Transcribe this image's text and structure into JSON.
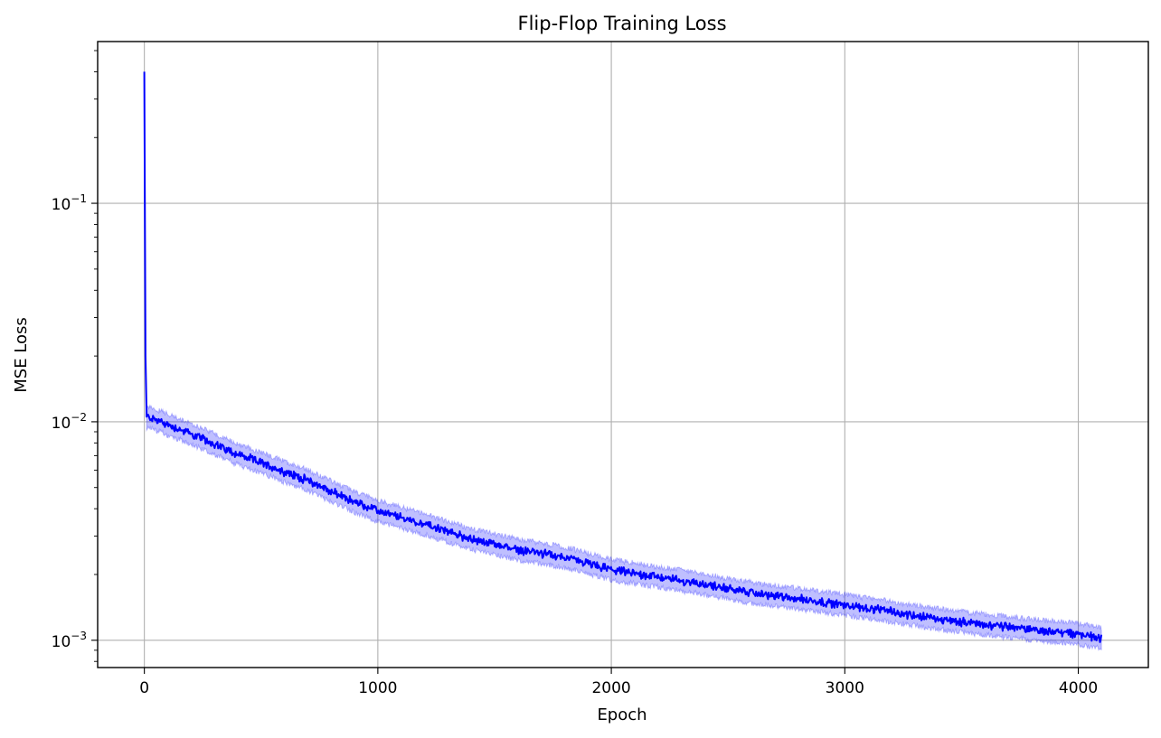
{
  "chart_data": {
    "type": "line",
    "title": "Flip-Flop Training Loss",
    "xlabel": "Epoch",
    "ylabel": "MSE Loss",
    "yscale": "log",
    "grid": true,
    "xlim": [
      -200,
      4300
    ],
    "ylim": [
      0.00075,
      0.55
    ],
    "x_ticks": [
      0,
      1000,
      2000,
      3000,
      4000
    ],
    "x_tick_labels": [
      "0",
      "1000",
      "2000",
      "3000",
      "4000"
    ],
    "y_ticks": [
      0.001,
      0.01,
      0.1
    ],
    "y_tick_labels": [
      {
        "base": "10",
        "exp": "−3"
      },
      {
        "base": "10",
        "exp": "−2"
      },
      {
        "base": "10",
        "exp": "−1"
      }
    ],
    "series": [
      {
        "color": "#0000ff",
        "x": [
          0,
          5,
          10,
          20,
          50,
          100,
          200,
          300,
          400,
          500,
          600,
          700,
          800,
          900,
          1000,
          1200,
          1400,
          1600,
          1800,
          2000,
          2200,
          2400,
          2600,
          2800,
          3000,
          3200,
          3400,
          3600,
          3800,
          4000,
          4100
        ],
        "y": [
          0.4,
          0.02,
          0.0105,
          0.0105,
          0.0102,
          0.0097,
          0.0088,
          0.0079,
          0.0071,
          0.0065,
          0.0059,
          0.0054,
          0.0048,
          0.0043,
          0.0039,
          0.0034,
          0.0029,
          0.0026,
          0.0024,
          0.0021,
          0.00195,
          0.0018,
          0.00165,
          0.00155,
          0.00145,
          0.00135,
          0.00125,
          0.00118,
          0.00112,
          0.00107,
          0.00102
        ]
      }
    ]
  }
}
